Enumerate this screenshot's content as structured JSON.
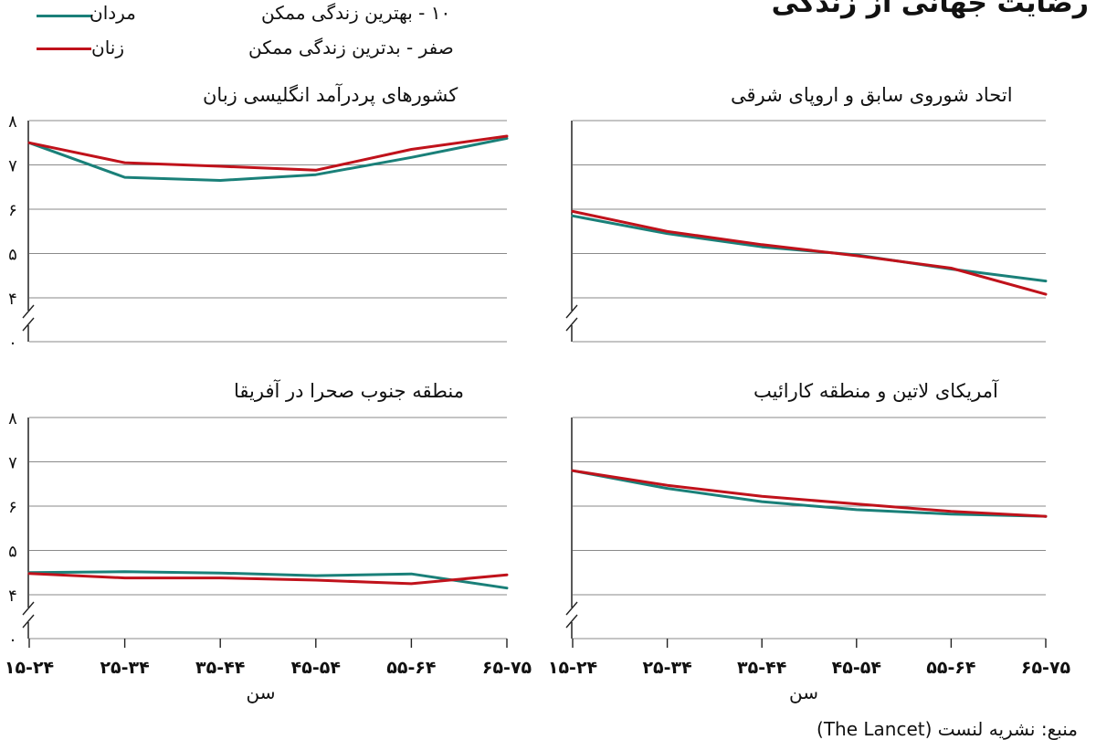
{
  "title": "رضایت جهانی از زندگی",
  "legend": {
    "men": {
      "label": "مردان",
      "color": "#1a8079"
    },
    "women": {
      "label": "زنان",
      "color": "#c0121b"
    }
  },
  "scale_notes": {
    "top": "۱۰ - بهترین زندگی ممکن",
    "bottom": "صفر - بدترین زندگی ممکن"
  },
  "source": "منبع: نشریه لنست (The Lancet)",
  "chart_data": [
    {
      "type": "line",
      "title": "کشورهای پردرآمد انگلیسی زبان",
      "xlabel": "سن",
      "categories": [
        "۱۵-۲۴",
        "۲۵-۳۴",
        "۳۵-۴۴",
        "۴۵-۵۴",
        "۵۵-۶۴",
        "۶۵-۷۵"
      ],
      "ytick_labels": [
        "۰",
        "۴",
        "۵",
        "۶",
        "۷",
        "۸"
      ],
      "ylim": [
        4,
        8
      ],
      "axis_break": true,
      "series": [
        {
          "name": "مردان",
          "key": "men",
          "values": [
            7.5,
            6.72,
            6.65,
            6.78,
            7.17,
            7.6
          ]
        },
        {
          "name": "زنان",
          "key": "women",
          "values": [
            7.5,
            7.05,
            6.97,
            6.88,
            7.35,
            7.65
          ]
        }
      ]
    },
    {
      "type": "line",
      "title": "اتحاد شوروی سابق و اروپای شرقی",
      "xlabel": "",
      "categories": [
        "۱۵-۲۴",
        "۲۵-۳۴",
        "۳۵-۴۴",
        "۴۵-۵۴",
        "۵۵-۶۴",
        "۶۵-۷۵"
      ],
      "ytick_labels": [],
      "ylim": [
        4,
        8
      ],
      "axis_break": true,
      "series": [
        {
          "name": "مردان",
          "key": "men",
          "values": [
            5.85,
            5.45,
            5.15,
            4.97,
            4.65,
            4.38
          ]
        },
        {
          "name": "زنان",
          "key": "women",
          "values": [
            5.95,
            5.5,
            5.2,
            4.95,
            4.67,
            4.08
          ]
        }
      ]
    },
    {
      "type": "line",
      "title": "منطقه جنوب صحرا در آفریقا",
      "xlabel": "سن",
      "categories": [
        "۱۵-۲۴",
        "۲۵-۳۴",
        "۳۵-۴۴",
        "۴۵-۵۴",
        "۵۵-۶۴",
        "۶۵-۷۵"
      ],
      "ytick_labels": [
        "۰",
        "۴",
        "۵",
        "۶",
        "۷",
        "۸"
      ],
      "ylim": [
        4,
        8
      ],
      "axis_break": true,
      "series": [
        {
          "name": "مردان",
          "key": "men",
          "values": [
            4.5,
            4.52,
            4.49,
            4.43,
            4.47,
            4.15
          ]
        },
        {
          "name": "زنان",
          "key": "women",
          "values": [
            4.48,
            4.38,
            4.38,
            4.33,
            4.25,
            4.45
          ]
        }
      ]
    },
    {
      "type": "line",
      "title": "آمریکای لاتین و منطقه کارائیب",
      "xlabel": "سن",
      "categories": [
        "۱۵-۲۴",
        "۲۵-۳۴",
        "۳۵-۴۴",
        "۴۵-۵۴",
        "۵۵-۶۴",
        "۶۵-۷۵"
      ],
      "ytick_labels": [],
      "ylim": [
        4,
        8
      ],
      "axis_break": true,
      "series": [
        {
          "name": "مردان",
          "key": "men",
          "values": [
            6.8,
            6.4,
            6.1,
            5.92,
            5.82,
            5.77
          ]
        },
        {
          "name": "زنان",
          "key": "women",
          "values": [
            6.8,
            6.47,
            6.22,
            6.05,
            5.88,
            5.77
          ]
        }
      ]
    }
  ]
}
